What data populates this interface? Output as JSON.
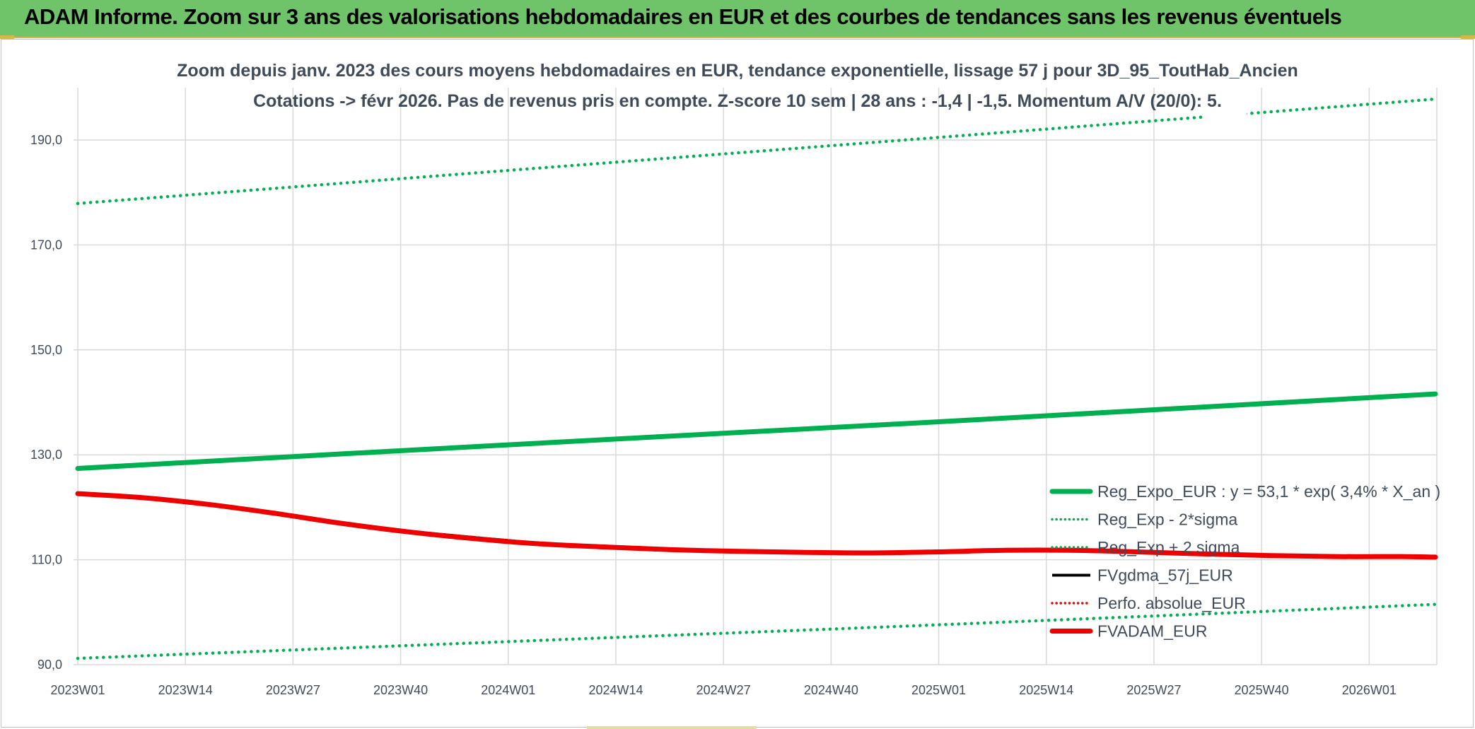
{
  "banner": {
    "title": "ADAM Informe. Zoom sur 3 ans des valorisations hebdomadaires en EUR et des courbes de tendances sans les revenus éventuels"
  },
  "colors": {
    "banner_bg": "#6fc46a",
    "trend": "#00b050",
    "black": "#000000",
    "red": "#ee0000"
  },
  "chart_data": {
    "type": "line",
    "title": "Zoom depuis janv. 2023 des cours moyens hebdomadaires en EUR, tendance exponentielle, lissage 57 j pour 3D_95_ToutHab_Ancien",
    "subtitle": "Cotations -> févr 2026. Pas de revenus pris en compte. Z-score 10 sem | 28 ans : -1,4 | -1,5. Momentum A/V (20/0): 5.",
    "ylim": [
      90,
      200
    ],
    "y_ticks": [
      "90,0",
      "110,0",
      "130,0",
      "150,0",
      "170,0",
      "190,0"
    ],
    "y_tick_values": [
      90,
      110,
      130,
      150,
      170,
      190
    ],
    "x_ticks": [
      "2023W01",
      "2023W14",
      "2023W27",
      "2023W40",
      "2024W01",
      "2024W14",
      "2024W27",
      "2024W40",
      "2025W01",
      "2025W14",
      "2025W27",
      "2025W40",
      "2026W01"
    ],
    "x_tick_index": [
      0,
      13,
      26,
      39,
      52,
      65,
      78,
      91,
      104,
      117,
      130,
      143,
      156
    ],
    "x_last_index": 164,
    "grid": true,
    "legend_position": "bottom-right",
    "series": [
      {
        "name": "Reg_Expo_EUR : y = 53,1 * exp( 3,4% *  X_an )",
        "style": "solid-thick",
        "color": "#00b050",
        "x": [
          0,
          52,
          104,
          164
        ],
        "y": [
          127.4,
          131.9,
          136.3,
          141.6
        ]
      },
      {
        "name": "Reg_Exp - 2*sigma",
        "style": "dotted",
        "color": "#00b050",
        "x": [
          0,
          52,
          104,
          164
        ],
        "y": [
          91.2,
          94.4,
          97.6,
          101.5
        ]
      },
      {
        "name": "Reg_Exp + 2 sigma",
        "style": "dotted",
        "color": "#00b050",
        "x": [
          0,
          52,
          104,
          164
        ],
        "y": [
          177.9,
          184.2,
          190.5,
          197.8
        ]
      },
      {
        "name": "FVgdma_57j_EUR",
        "style": "solid",
        "color": "#000000",
        "x": [
          0,
          8,
          16,
          24,
          32,
          40,
          48,
          56,
          64,
          72,
          80,
          88,
          96,
          104,
          112,
          120,
          128,
          136,
          144,
          152,
          160,
          164
        ],
        "y": [
          122.4,
          121.6,
          120.4,
          118.8,
          117.0,
          115.5,
          114.3,
          113.2,
          112.5,
          112.0,
          111.6,
          111.5,
          111.3,
          111.4,
          111.6,
          111.7,
          111.5,
          111.1,
          110.8,
          110.6,
          110.6,
          110.5
        ]
      },
      {
        "name": "Perfo. absolue_EUR",
        "style": "dotted",
        "color": "#ee0000",
        "x": [],
        "y": []
      },
      {
        "name": "FVADAM_EUR",
        "style": "solid-thick",
        "color": "#ee0000",
        "x": [
          0,
          8,
          16,
          24,
          32,
          40,
          48,
          56,
          64,
          72,
          80,
          88,
          96,
          104,
          112,
          120,
          128,
          136,
          144,
          152,
          160,
          164
        ],
        "y": [
          122.6,
          121.8,
          120.5,
          118.8,
          116.9,
          115.3,
          114.0,
          113.0,
          112.4,
          111.9,
          111.6,
          111.4,
          111.3,
          111.5,
          111.8,
          111.8,
          111.5,
          111.1,
          110.8,
          110.6,
          110.6,
          110.5
        ]
      }
    ]
  }
}
